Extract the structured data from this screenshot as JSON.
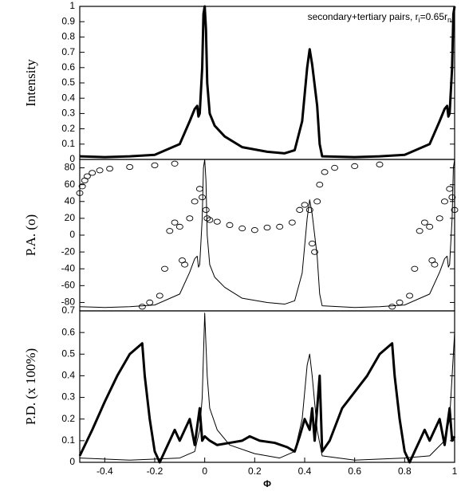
{
  "chart_data": [
    {
      "type": "line",
      "ylabel": "Intensity",
      "xlim": [
        -0.5,
        1
      ],
      "ylim": [
        0,
        1
      ],
      "yticks": [
        0,
        0.1,
        0.2,
        0.3,
        0.4,
        0.5,
        0.6,
        0.7,
        0.8,
        0.9,
        1
      ],
      "annotation": {
        "text": "secondary+tertiary pairs, r",
        "sub1": "i",
        "mid": "=0.65r",
        "sub2": "n"
      },
      "series": [
        {
          "type": "line",
          "color": "#000000",
          "linewidth": 3,
          "x": [
            -0.5,
            -0.4,
            -0.3,
            -0.2,
            -0.1,
            -0.06,
            -0.04,
            -0.03,
            -0.025,
            -0.02,
            -0.01,
            -0.005,
            0,
            0.005,
            0.01,
            0.02,
            0.04,
            0.08,
            0.15,
            0.25,
            0.32,
            0.36,
            0.39,
            0.41,
            0.42,
            0.43,
            0.45,
            0.46,
            0.47,
            0.6,
            0.7,
            0.8,
            0.9,
            0.94,
            0.96,
            0.97,
            0.975,
            0.98,
            0.99,
            0.995,
            1
          ],
          "values": [
            0.02,
            0.015,
            0.02,
            0.03,
            0.1,
            0.25,
            0.33,
            0.35,
            0.28,
            0.3,
            0.6,
            0.95,
            1,
            0.85,
            0.5,
            0.3,
            0.22,
            0.15,
            0.08,
            0.05,
            0.04,
            0.06,
            0.25,
            0.6,
            0.72,
            0.62,
            0.35,
            0.1,
            0.02,
            0.015,
            0.02,
            0.03,
            0.1,
            0.25,
            0.33,
            0.35,
            0.28,
            0.3,
            0.6,
            0.95,
            1
          ]
        }
      ]
    },
    {
      "type": "line",
      "ylabel": "P.A. (o)",
      "xlim": [
        -0.5,
        1
      ],
      "ylim": [
        -90,
        90
      ],
      "yticks": [
        -80,
        -60,
        -40,
        -20,
        0,
        20,
        40,
        60,
        80
      ],
      "series": [
        {
          "type": "line",
          "color": "#000000",
          "linewidth": 1,
          "x": [
            -0.5,
            -0.4,
            -0.3,
            -0.2,
            -0.1,
            -0.06,
            -0.04,
            -0.03,
            -0.025,
            -0.02,
            -0.01,
            -0.005,
            0,
            0.005,
            0.01,
            0.02,
            0.04,
            0.08,
            0.15,
            0.25,
            0.32,
            0.36,
            0.39,
            0.41,
            0.42,
            0.43,
            0.45,
            0.46,
            0.47,
            0.6,
            0.7,
            0.8,
            0.9,
            0.94,
            0.96,
            0.97,
            0.975,
            0.98,
            0.99,
            0.995,
            1
          ],
          "values": [
            -85,
            -86,
            -85,
            -83,
            -70,
            -44,
            -28,
            -25,
            -38,
            -35,
            20,
            80,
            90,
            65,
            0,
            -35,
            -50,
            -62,
            -75,
            -80,
            -82,
            -78,
            -45,
            20,
            42,
            25,
            -25,
            -70,
            -84,
            -86,
            -85,
            -83,
            -70,
            -44,
            -28,
            -25,
            -38,
            -35,
            20,
            80,
            90
          ]
        },
        {
          "type": "scatter",
          "color": "#000000",
          "x": [
            -0.5,
            -0.49,
            -0.48,
            -0.47,
            -0.45,
            -0.42,
            -0.38,
            -0.3,
            -0.2,
            -0.12,
            -0.25,
            -0.22,
            -0.18,
            -0.16,
            -0.14,
            -0.12,
            -0.1,
            -0.09,
            -0.08,
            -0.06,
            -0.04,
            -0.02,
            -0.01,
            0.005,
            0.01,
            0.02,
            0.05,
            0.1,
            0.15,
            0.2,
            0.25,
            0.3,
            0.35,
            0.38,
            0.4,
            0.42,
            0.43,
            0.44,
            0.45,
            0.46,
            0.48,
            0.52,
            0.6,
            0.7,
            0.75,
            0.78,
            0.82,
            0.84,
            0.86,
            0.88,
            0.9,
            0.91,
            0.92,
            0.94,
            0.96,
            0.98,
            0.99,
            1
          ],
          "values": [
            50,
            58,
            65,
            70,
            74,
            77,
            79,
            81,
            83,
            85,
            -85,
            -80,
            -72,
            -40,
            5,
            15,
            10,
            -30,
            -35,
            20,
            40,
            55,
            45,
            30,
            20,
            18,
            16,
            12,
            8,
            6,
            9,
            10,
            15,
            30,
            36,
            30,
            -10,
            -20,
            40,
            60,
            75,
            80,
            82,
            84,
            -85,
            -80,
            -72,
            -40,
            5,
            15,
            10,
            -30,
            -35,
            20,
            40,
            55,
            45,
            30
          ]
        }
      ]
    },
    {
      "type": "line",
      "ylabel": "P.D. (x 100%)",
      "xlabel": "Φ",
      "xlim": [
        -0.5,
        1
      ],
      "ylim": [
        0,
        0.7
      ],
      "yticks": [
        0,
        0.1,
        0.2,
        0.3,
        0.4,
        0.5,
        0.6,
        0.7
      ],
      "xticks": [
        -0.4,
        -0.2,
        0,
        0.2,
        0.4,
        0.6,
        0.8,
        1
      ],
      "series": [
        {
          "type": "line",
          "color": "#000000",
          "linewidth": 3,
          "x": [
            -0.5,
            -0.45,
            -0.4,
            -0.35,
            -0.3,
            -0.25,
            -0.24,
            -0.22,
            -0.2,
            -0.18,
            -0.16,
            -0.14,
            -0.12,
            -0.1,
            -0.08,
            -0.06,
            -0.04,
            -0.02,
            -0.01,
            0,
            0.02,
            0.05,
            0.1,
            0.15,
            0.18,
            0.22,
            0.28,
            0.33,
            0.36,
            0.38,
            0.4,
            0.42,
            0.43,
            0.44,
            0.46,
            0.47,
            0.5,
            0.55,
            0.65,
            0.7,
            0.75,
            0.76,
            0.78,
            0.8,
            0.82,
            0.84,
            0.86,
            0.88,
            0.9,
            0.92,
            0.94,
            0.96,
            0.98,
            0.99,
            1
          ],
          "values": [
            0.03,
            0.15,
            0.28,
            0.4,
            0.5,
            0.55,
            0.4,
            0.2,
            0.05,
            0,
            0.05,
            0.1,
            0.15,
            0.1,
            0.15,
            0.2,
            0.08,
            0.25,
            0.1,
            0.12,
            0.1,
            0.08,
            0.09,
            0.1,
            0.12,
            0.1,
            0.09,
            0.07,
            0.05,
            0.12,
            0.2,
            0.15,
            0.25,
            0.1,
            0.4,
            0.05,
            0.1,
            0.25,
            0.4,
            0.5,
            0.55,
            0.4,
            0.2,
            0.05,
            0,
            0.05,
            0.1,
            0.15,
            0.1,
            0.15,
            0.2,
            0.08,
            0.25,
            0.1,
            0.12
          ]
        },
        {
          "type": "line",
          "color": "#000000",
          "linewidth": 1,
          "x": [
            -0.5,
            -0.3,
            -0.1,
            -0.04,
            -0.02,
            -0.01,
            0,
            0.01,
            0.02,
            0.05,
            0.1,
            0.2,
            0.3,
            0.36,
            0.39,
            0.41,
            0.42,
            0.43,
            0.45,
            0.47,
            0.6,
            0.8,
            0.9,
            0.96,
            0.98,
            1
          ],
          "values": [
            0.02,
            0.01,
            0.02,
            0.05,
            0.15,
            0.3,
            0.69,
            0.4,
            0.25,
            0.15,
            0.08,
            0.04,
            0.02,
            0.05,
            0.2,
            0.45,
            0.5,
            0.4,
            0.15,
            0.03,
            0.01,
            0.02,
            0.03,
            0.1,
            0.2,
            0.6
          ]
        }
      ]
    }
  ]
}
